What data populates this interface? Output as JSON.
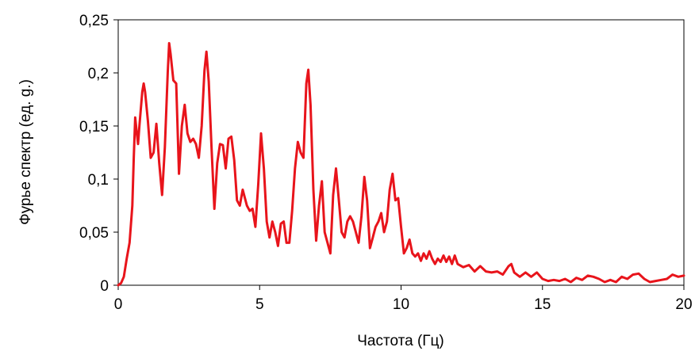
{
  "chart_data": {
    "type": "line",
    "title": "",
    "xlabel": "Частота (Гц)",
    "ylabel": "Фурье спектр (ед. g.)",
    "xlim": [
      0,
      20
    ],
    "ylim": [
      0,
      0.25
    ],
    "grid": false,
    "legend": "none",
    "x_tick_labels": [
      {
        "value": 0,
        "label": "0"
      },
      {
        "value": 5,
        "label": "5"
      },
      {
        "value": 10,
        "label": "10"
      },
      {
        "value": 15,
        "label": "15"
      },
      {
        "value": 20,
        "label": "20"
      }
    ],
    "y_tick_labels": [
      {
        "value": 0,
        "label": "0"
      },
      {
        "value": 0.05,
        "label": "0,05"
      },
      {
        "value": 0.1,
        "label": "0,1"
      },
      {
        "value": 0.15,
        "label": "0,15"
      },
      {
        "value": 0.2,
        "label": "0,2"
      },
      {
        "value": 0.25,
        "label": "0,25"
      }
    ],
    "series": [
      {
        "color": "#e8141b",
        "points": [
          [
            0.0,
            0.0
          ],
          [
            0.1,
            0.002
          ],
          [
            0.2,
            0.008
          ],
          [
            0.3,
            0.025
          ],
          [
            0.4,
            0.04
          ],
          [
            0.5,
            0.075
          ],
          [
            0.55,
            0.12
          ],
          [
            0.6,
            0.158
          ],
          [
            0.65,
            0.145
          ],
          [
            0.7,
            0.133
          ],
          [
            0.75,
            0.15
          ],
          [
            0.85,
            0.182
          ],
          [
            0.9,
            0.19
          ],
          [
            0.95,
            0.182
          ],
          [
            1.05,
            0.155
          ],
          [
            1.15,
            0.12
          ],
          [
            1.25,
            0.125
          ],
          [
            1.35,
            0.152
          ],
          [
            1.45,
            0.115
          ],
          [
            1.55,
            0.085
          ],
          [
            1.65,
            0.13
          ],
          [
            1.75,
            0.2
          ],
          [
            1.8,
            0.228
          ],
          [
            1.85,
            0.218
          ],
          [
            1.95,
            0.193
          ],
          [
            2.05,
            0.19
          ],
          [
            2.15,
            0.105
          ],
          [
            2.25,
            0.15
          ],
          [
            2.35,
            0.17
          ],
          [
            2.45,
            0.143
          ],
          [
            2.55,
            0.135
          ],
          [
            2.65,
            0.138
          ],
          [
            2.75,
            0.133
          ],
          [
            2.85,
            0.12
          ],
          [
            2.95,
            0.15
          ],
          [
            3.05,
            0.202
          ],
          [
            3.12,
            0.22
          ],
          [
            3.2,
            0.192
          ],
          [
            3.3,
            0.13
          ],
          [
            3.4,
            0.072
          ],
          [
            3.5,
            0.115
          ],
          [
            3.6,
            0.133
          ],
          [
            3.7,
            0.132
          ],
          [
            3.8,
            0.11
          ],
          [
            3.9,
            0.138
          ],
          [
            4.0,
            0.14
          ],
          [
            4.1,
            0.118
          ],
          [
            4.2,
            0.08
          ],
          [
            4.3,
            0.075
          ],
          [
            4.4,
            0.09
          ],
          [
            4.55,
            0.075
          ],
          [
            4.65,
            0.07
          ],
          [
            4.75,
            0.072
          ],
          [
            4.85,
            0.055
          ],
          [
            4.95,
            0.095
          ],
          [
            5.05,
            0.143
          ],
          [
            5.15,
            0.11
          ],
          [
            5.25,
            0.06
          ],
          [
            5.35,
            0.045
          ],
          [
            5.45,
            0.06
          ],
          [
            5.55,
            0.05
          ],
          [
            5.65,
            0.037
          ],
          [
            5.75,
            0.058
          ],
          [
            5.85,
            0.06
          ],
          [
            5.95,
            0.04
          ],
          [
            6.05,
            0.04
          ],
          [
            6.15,
            0.07
          ],
          [
            6.25,
            0.11
          ],
          [
            6.35,
            0.135
          ],
          [
            6.45,
            0.125
          ],
          [
            6.55,
            0.12
          ],
          [
            6.65,
            0.19
          ],
          [
            6.72,
            0.203
          ],
          [
            6.8,
            0.17
          ],
          [
            6.9,
            0.09
          ],
          [
            7.0,
            0.042
          ],
          [
            7.1,
            0.075
          ],
          [
            7.2,
            0.098
          ],
          [
            7.3,
            0.05
          ],
          [
            7.4,
            0.04
          ],
          [
            7.5,
            0.03
          ],
          [
            7.6,
            0.085
          ],
          [
            7.7,
            0.11
          ],
          [
            7.8,
            0.08
          ],
          [
            7.9,
            0.05
          ],
          [
            8.0,
            0.045
          ],
          [
            8.1,
            0.06
          ],
          [
            8.2,
            0.065
          ],
          [
            8.3,
            0.06
          ],
          [
            8.4,
            0.05
          ],
          [
            8.5,
            0.04
          ],
          [
            8.6,
            0.065
          ],
          [
            8.7,
            0.102
          ],
          [
            8.8,
            0.08
          ],
          [
            8.9,
            0.035
          ],
          [
            9.0,
            0.045
          ],
          [
            9.1,
            0.055
          ],
          [
            9.2,
            0.06
          ],
          [
            9.3,
            0.068
          ],
          [
            9.4,
            0.05
          ],
          [
            9.5,
            0.06
          ],
          [
            9.6,
            0.09
          ],
          [
            9.7,
            0.105
          ],
          [
            9.8,
            0.08
          ],
          [
            9.9,
            0.082
          ],
          [
            10.0,
            0.055
          ],
          [
            10.1,
            0.03
          ],
          [
            10.2,
            0.035
          ],
          [
            10.3,
            0.043
          ],
          [
            10.4,
            0.03
          ],
          [
            10.5,
            0.027
          ],
          [
            10.6,
            0.03
          ],
          [
            10.7,
            0.023
          ],
          [
            10.8,
            0.03
          ],
          [
            10.9,
            0.025
          ],
          [
            11.0,
            0.032
          ],
          [
            11.1,
            0.025
          ],
          [
            11.2,
            0.02
          ],
          [
            11.3,
            0.025
          ],
          [
            11.4,
            0.022
          ],
          [
            11.5,
            0.028
          ],
          [
            11.6,
            0.022
          ],
          [
            11.7,
            0.027
          ],
          [
            11.8,
            0.02
          ],
          [
            11.9,
            0.028
          ],
          [
            12.0,
            0.02
          ],
          [
            12.2,
            0.017
          ],
          [
            12.4,
            0.019
          ],
          [
            12.6,
            0.013
          ],
          [
            12.8,
            0.018
          ],
          [
            13.0,
            0.013
          ],
          [
            13.2,
            0.012
          ],
          [
            13.4,
            0.013
          ],
          [
            13.6,
            0.01
          ],
          [
            13.8,
            0.018
          ],
          [
            13.9,
            0.02
          ],
          [
            14.0,
            0.012
          ],
          [
            14.2,
            0.008
          ],
          [
            14.4,
            0.012
          ],
          [
            14.6,
            0.008
          ],
          [
            14.8,
            0.012
          ],
          [
            15.0,
            0.006
          ],
          [
            15.2,
            0.004
          ],
          [
            15.4,
            0.005
          ],
          [
            15.6,
            0.004
          ],
          [
            15.8,
            0.006
          ],
          [
            16.0,
            0.003
          ],
          [
            16.2,
            0.007
          ],
          [
            16.4,
            0.005
          ],
          [
            16.6,
            0.009
          ],
          [
            16.8,
            0.008
          ],
          [
            17.0,
            0.006
          ],
          [
            17.2,
            0.003
          ],
          [
            17.4,
            0.005
          ],
          [
            17.6,
            0.003
          ],
          [
            17.8,
            0.008
          ],
          [
            18.0,
            0.006
          ],
          [
            18.2,
            0.01
          ],
          [
            18.4,
            0.011
          ],
          [
            18.6,
            0.006
          ],
          [
            18.8,
            0.003
          ],
          [
            19.0,
            0.004
          ],
          [
            19.2,
            0.005
          ],
          [
            19.4,
            0.006
          ],
          [
            19.6,
            0.01
          ],
          [
            19.8,
            0.008
          ],
          [
            20.0,
            0.009
          ]
        ]
      }
    ]
  }
}
